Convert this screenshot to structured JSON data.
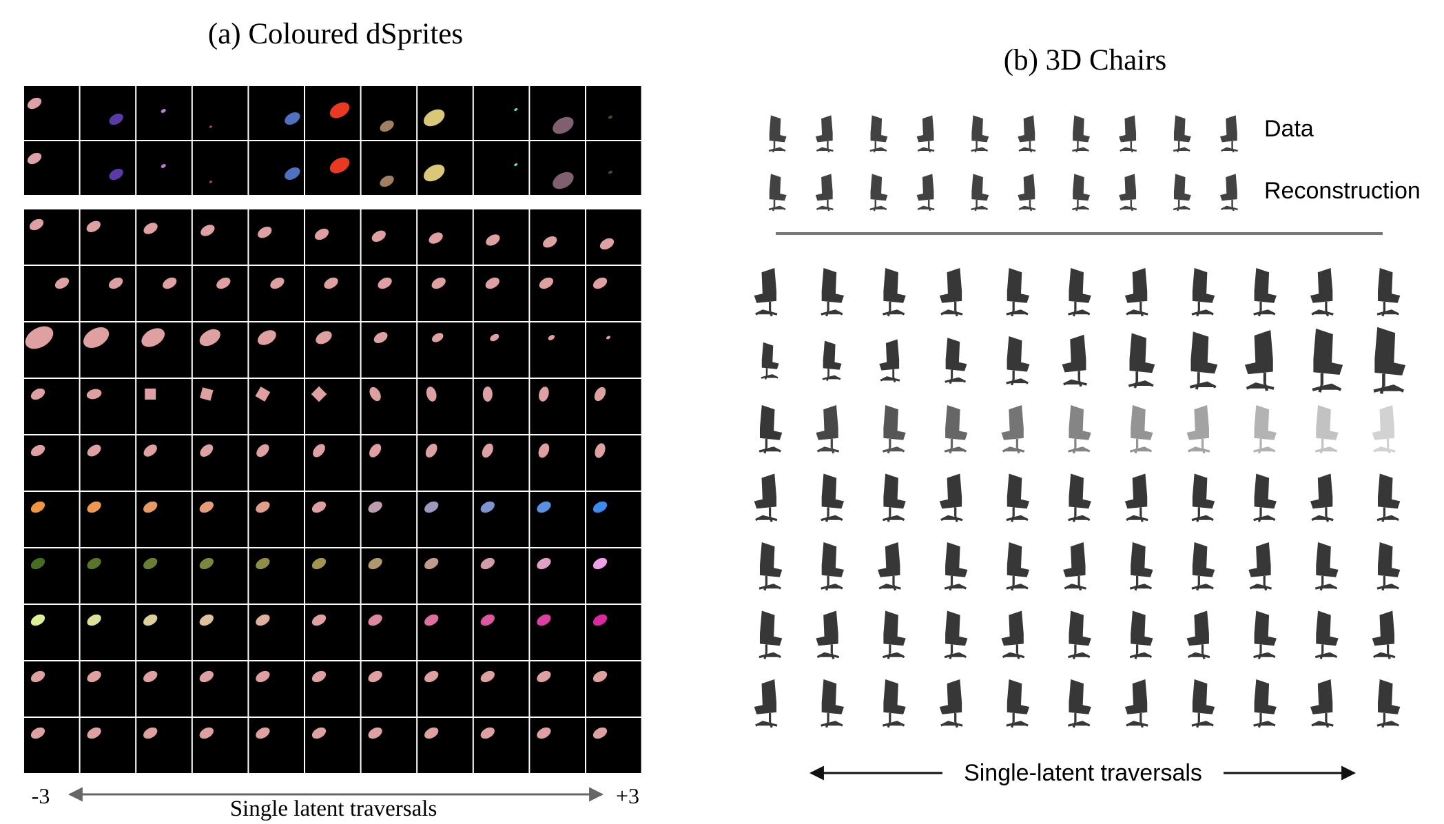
{
  "panel_a": {
    "title": "(a) Coloured dSprites",
    "left_label": "-3",
    "right_label": "+3",
    "axis_label": "Single latent traversals"
  },
  "panel_b": {
    "title": "(b) 3D Chairs",
    "row_labels": [
      "Data",
      "Reconstruction"
    ],
    "axis_label": "Single-latent traversals"
  }
}
